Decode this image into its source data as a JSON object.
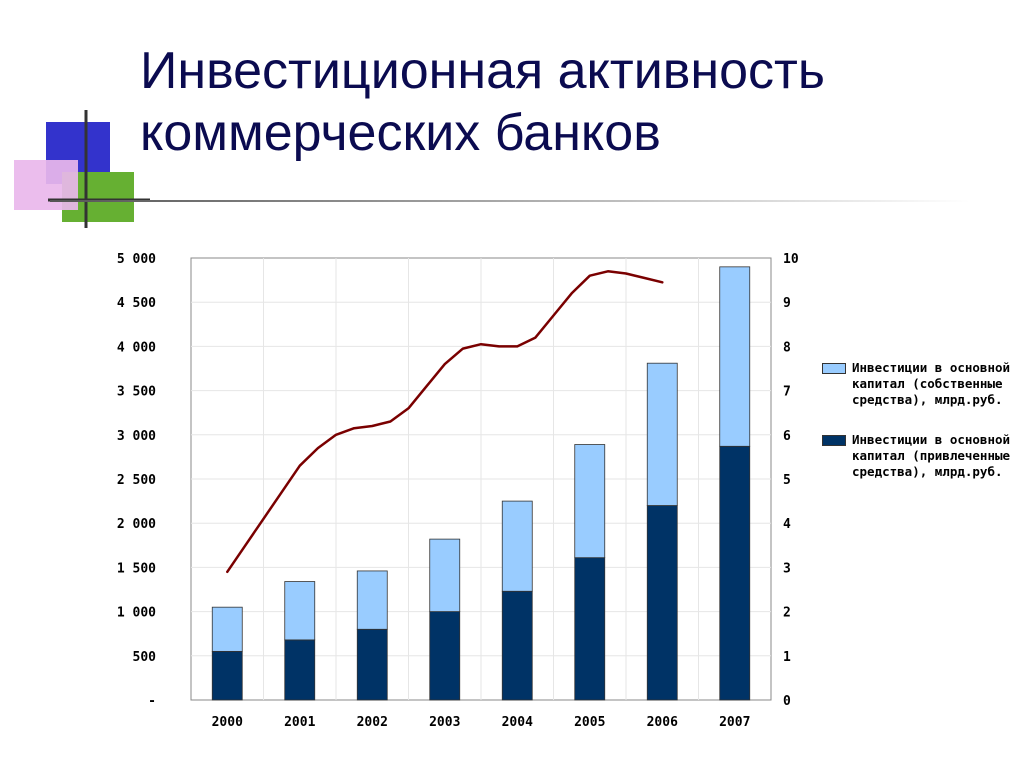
{
  "title": "Инвестиционная активность коммерческих банков",
  "colors": {
    "own_funds": "#99ccff",
    "borrowed_funds": "#003366",
    "line": "#7a0000",
    "title": "#0b0b50"
  },
  "chart_data": {
    "type": "bar",
    "stacked": true,
    "categories": [
      "2000",
      "2001",
      "2002",
      "2003",
      "2004",
      "2005",
      "2006",
      "2007"
    ],
    "series": [
      {
        "name": "Инвестиции в основной капитал (привлеченные средства), млрд.руб.",
        "values": [
          550,
          680,
          800,
          1000,
          1230,
          1610,
          2200,
          2870
        ]
      },
      {
        "name": "Инвестиции в основной капитал (собственные средства), млрд.руб.",
        "values": [
          500,
          660,
          660,
          820,
          1020,
          1280,
          1610,
          2030
        ]
      }
    ],
    "line_series": {
      "axis": "right",
      "points": [
        {
          "x": 0.0,
          "y": 2.9
        },
        {
          "x": 0.25,
          "y": 3.5
        },
        {
          "x": 0.5,
          "y": 4.1
        },
        {
          "x": 0.75,
          "y": 4.7
        },
        {
          "x": 1.0,
          "y": 5.3
        },
        {
          "x": 1.25,
          "y": 5.7
        },
        {
          "x": 1.5,
          "y": 6.0
        },
        {
          "x": 1.75,
          "y": 6.15
        },
        {
          "x": 2.0,
          "y": 6.2
        },
        {
          "x": 2.25,
          "y": 6.3
        },
        {
          "x": 2.5,
          "y": 6.6
        },
        {
          "x": 2.75,
          "y": 7.1
        },
        {
          "x": 3.0,
          "y": 7.6
        },
        {
          "x": 3.25,
          "y": 7.95
        },
        {
          "x": 3.5,
          "y": 8.05
        },
        {
          "x": 3.75,
          "y": 8.0
        },
        {
          "x": 4.0,
          "y": 8.0
        },
        {
          "x": 4.25,
          "y": 8.2
        },
        {
          "x": 4.5,
          "y": 8.7
        },
        {
          "x": 4.75,
          "y": 9.2
        },
        {
          "x": 5.0,
          "y": 9.6
        },
        {
          "x": 5.25,
          "y": 9.7
        },
        {
          "x": 5.5,
          "y": 9.65
        },
        {
          "x": 5.75,
          "y": 9.55
        },
        {
          "x": 6.0,
          "y": 9.45
        }
      ]
    },
    "y_left": {
      "ylim": [
        0,
        5000
      ],
      "ticks": [
        0,
        500,
        1000,
        1500,
        2000,
        2500,
        3000,
        3500,
        4000,
        4500,
        5000
      ],
      "tick_labels": [
        "-",
        "500",
        "1 000",
        "1 500",
        "2 000",
        "2 500",
        "3 000",
        "3 500",
        "4 000",
        "4 500",
        "5 000"
      ]
    },
    "y_right": {
      "ylim": [
        0,
        10
      ],
      "ticks": [
        0,
        1,
        2,
        3,
        4,
        5,
        6,
        7,
        8,
        9,
        10
      ],
      "tick_labels": [
        "0",
        "1",
        "2",
        "3",
        "4",
        "5",
        "6",
        "7",
        "8",
        "9",
        "10"
      ]
    },
    "grid": true,
    "legend_position": "right"
  }
}
